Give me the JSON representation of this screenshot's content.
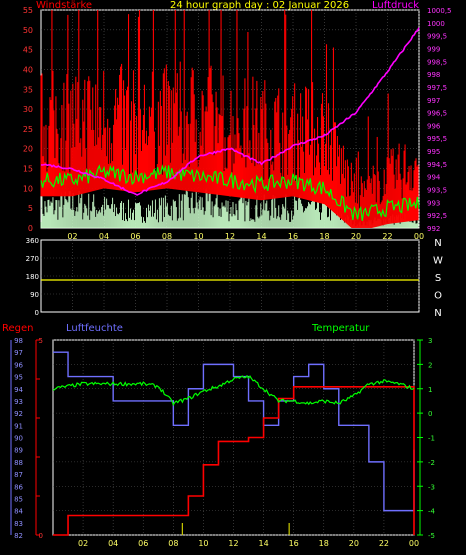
{
  "panel1": {
    "title": "24 hour graph day : 02 Januar 2026",
    "left_label": "Windstärke",
    "right_label": "Luftdruck",
    "left_ticks": [
      "0",
      "5",
      "10",
      "15",
      "20",
      "25",
      "30",
      "35",
      "40",
      "45",
      "50",
      "55"
    ],
    "right_ticks": [
      "992",
      "992,5",
      "993",
      "993,5",
      "994",
      "994,5",
      "995",
      "995,5",
      "996",
      "996,5",
      "997",
      "997,5",
      "998",
      "998,5",
      "999",
      "999,5",
      "1000",
      "1000,5"
    ],
    "x_ticks": [
      "02",
      "04",
      "06",
      "08",
      "10",
      "12",
      "14",
      "16",
      "18",
      "20",
      "22",
      "00"
    ]
  },
  "panel2": {
    "left_ticks": [
      "0",
      "90",
      "180",
      "270",
      "360"
    ],
    "dir_labels": [
      "N",
      "W",
      "S",
      "O",
      "N"
    ],
    "x_ticks": [
      "02",
      "04",
      "06",
      "08",
      "10",
      "12",
      "14",
      "16",
      "18",
      "20",
      "22",
      "00"
    ]
  },
  "panel3": {
    "regen_label": "Regen",
    "feucht_label": "Luftfeuchte",
    "temp_label": "Temperatur",
    "humidity_ticks": [
      "82",
      "83",
      "84",
      "85",
      "86",
      "87",
      "88",
      "89",
      "90",
      "91",
      "92",
      "93",
      "94",
      "95",
      "96",
      "97",
      "98"
    ],
    "rain_ticks": [
      "0",
      "5"
    ],
    "temp_ticks": [
      "-5",
      "-4",
      "-3",
      "-2",
      "-1",
      "0",
      "1",
      "2",
      "3"
    ],
    "x_ticks": [
      "02",
      "04",
      "06",
      "08",
      "10",
      "12",
      "14",
      "16",
      "18",
      "20",
      "22",
      "00"
    ]
  },
  "chart_data": [
    {
      "type": "line",
      "title": "24 hour graph day : 02 Januar 2026",
      "ylabel": "Windstärke",
      "ylabel_right": "Luftdruck",
      "ylim": [
        0,
        55
      ],
      "ylim_right": [
        992,
        1000.5
      ],
      "x": [
        0,
        2,
        4,
        6,
        8,
        10,
        12,
        14,
        16,
        18,
        20,
        22,
        24
      ],
      "series": [
        {
          "name": "Windstärke",
          "color": "#ff0000",
          "values": [
            25,
            26,
            27,
            25,
            26,
            27,
            25,
            24,
            23,
            24,
            8,
            12,
            16
          ]
        },
        {
          "name": "Luftdruck",
          "color": "#ff00ff",
          "values": [
            994.5,
            994.3,
            993.9,
            993.3,
            993.8,
            994.8,
            995.1,
            994.5,
            995.2,
            995.6,
            996.5,
            998.1,
            999.8
          ]
        },
        {
          "name": "Mittelwind",
          "color": "#00ff00",
          "values": [
            12,
            12,
            14,
            13,
            14,
            13,
            12,
            11,
            12,
            10,
            3,
            5,
            6
          ]
        },
        {
          "name": "Böen",
          "color": "#ccffcc",
          "values": [
            5,
            6,
            5,
            4,
            5,
            6,
            5,
            5,
            5,
            5,
            1,
            2,
            3
          ]
        }
      ]
    },
    {
      "type": "line",
      "ylim": [
        0,
        360
      ],
      "x": [
        0,
        24
      ],
      "series": [
        {
          "name": "Windrichtung",
          "color": "#ffff00",
          "values": [
            160,
            160
          ]
        }
      ]
    },
    {
      "type": "line",
      "ylim": [
        82,
        98
      ],
      "ylim_rain": [
        0,
        5
      ],
      "ylim_temp": [
        -5,
        3
      ],
      "x": [
        0,
        1,
        2,
        4,
        6,
        7,
        8,
        9,
        10,
        11,
        12,
        13,
        14,
        15,
        16,
        17,
        18,
        19,
        20,
        21,
        22,
        23,
        24
      ],
      "series": [
        {
          "name": "Luftfeuchte",
          "color": "#6f6fff",
          "values": [
            97,
            95,
            95,
            93,
            93,
            93,
            91,
            94,
            96,
            96,
            95,
            93,
            91,
            93,
            95,
            96,
            94,
            91,
            91,
            88,
            84,
            84,
            89
          ]
        },
        {
          "name": "Regen",
          "color": "#ff0000",
          "values": [
            0,
            0.5,
            0.5,
            0.5,
            0.5,
            0.5,
            0.5,
            1,
            1.8,
            2.4,
            2.4,
            2.5,
            3,
            3.5,
            3.8,
            3.8,
            3.8,
            3.8,
            3.8,
            3.8,
            3.8,
            3.8,
            0
          ]
        },
        {
          "name": "Temperatur",
          "color": "#00ff00",
          "values": [
            1,
            1.1,
            1.2,
            1.2,
            1.2,
            1.1,
            0.4,
            0.6,
            0.9,
            1.1,
            1.4,
            1.5,
            1.0,
            0.5,
            0.5,
            0.4,
            0.5,
            0.4,
            0.7,
            1.2,
            1.3,
            1.2,
            1.0
          ]
        }
      ]
    }
  ]
}
